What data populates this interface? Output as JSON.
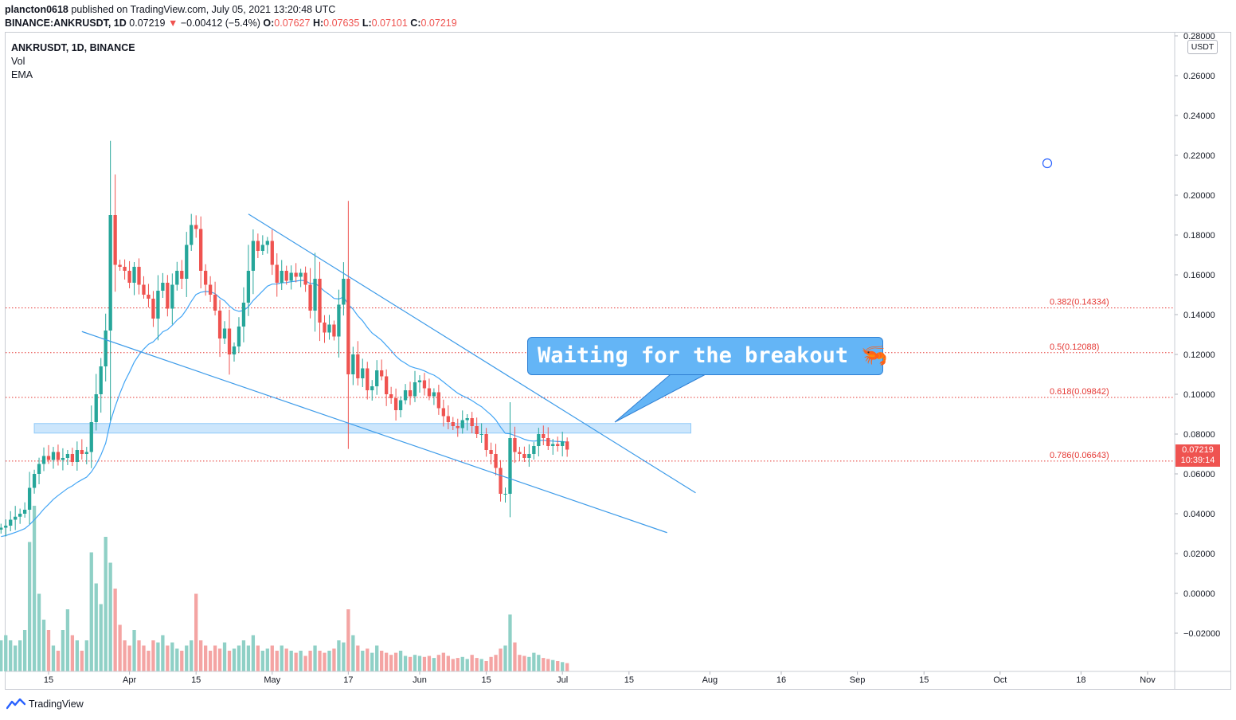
{
  "header": {
    "author": "plancton0618",
    "published_text": "published on TradingView.com, July 05, 2021 13:20:48 UTC",
    "symbol_line": "BINANCE:ANKRUSDT, 1D",
    "last_price": "0.07219",
    "change": "−0.00412 (−5.4%)",
    "o_label": "O:",
    "o_value": "0.07627",
    "h_label": "H:",
    "h_value": "0.07635",
    "l_label": "L:",
    "l_value": "0.07101",
    "c_label": "C:",
    "c_value": "0.07219"
  },
  "legend": {
    "title": "ANKRUSDT, 1D, BINANCE",
    "vol": "Vol",
    "ema": "EMA"
  },
  "price_axis": {
    "unit": "USDT",
    "current_price": "0.07219",
    "countdown": "10:39:14"
  },
  "annotation": {
    "text": "Waiting for the breakout",
    "emoji": "🦐"
  },
  "footer": {
    "brand": "TradingView"
  },
  "colors": {
    "up": "#26a69a",
    "down": "#ef5350",
    "vol_up": "#8fd0c6",
    "vol_down": "#f4a4a3",
    "ema": "#42a5f5",
    "trend": "#3d9be9",
    "fib": "#e53935",
    "zone": "#bbdefb"
  },
  "chart_data": {
    "type": "candlestick",
    "timeframe": "1D",
    "y_axis": {
      "ticks": [
        "0.28000",
        "0.26000",
        "0.24000",
        "0.22000",
        "0.20000",
        "0.18000",
        "0.16000",
        "0.14000",
        "0.12000",
        "0.10000",
        "0.08000",
        "0.06000",
        "0.04000",
        "0.02000",
        "0.00000",
        "−0.02000"
      ],
      "min": -0.035,
      "max": 0.28
    },
    "x_axis": {
      "start_date": "2021-03-05",
      "ticks": [
        {
          "label": "15",
          "date": "2021-03-15"
        },
        {
          "label": "Apr",
          "date": "2021-04-01"
        },
        {
          "label": "15",
          "date": "2021-04-15"
        },
        {
          "label": "May",
          "date": "2021-05-01"
        },
        {
          "label": "17",
          "date": "2021-05-17"
        },
        {
          "label": "Jun",
          "date": "2021-06-01"
        },
        {
          "label": "15",
          "date": "2021-06-15"
        },
        {
          "label": "Jul",
          "date": "2021-07-01"
        },
        {
          "label": "15",
          "date": "2021-07-15"
        },
        {
          "label": "Aug",
          "date": "2021-08-01"
        },
        {
          "label": "16",
          "date": "2021-08-16"
        },
        {
          "label": "Sep",
          "date": "2021-09-01"
        },
        {
          "label": "15",
          "date": "2021-09-15"
        },
        {
          "label": "Oct",
          "date": "2021-10-01"
        },
        {
          "label": "18",
          "date": "2021-10-18"
        },
        {
          "label": "Nov",
          "date": "2021-11-01"
        }
      ]
    },
    "fib_levels": [
      {
        "label": "0.382(0.14334)",
        "value": 0.14334
      },
      {
        "label": "0.5(0.12088)",
        "value": 0.12088
      },
      {
        "label": "0.618(0.09842)",
        "value": 0.09842
      },
      {
        "label": "0.786(0.06643)",
        "value": 0.06643
      }
    ],
    "zone": {
      "from_date": "2021-03-12",
      "to_date": "2021-07-28",
      "low": 0.0805,
      "high": 0.0853
    },
    "trend_lines": [
      {
        "name": "upper",
        "start": {
          "date": "2021-04-26",
          "value": 0.1905
        },
        "end": {
          "date": "2021-07-29",
          "value": 0.0505
        }
      },
      {
        "name": "lower",
        "start": {
          "date": "2021-03-22",
          "value": 0.1315
        },
        "end": {
          "date": "2021-07-23",
          "value": 0.0305
        }
      }
    ],
    "closes": [
      0.033,
      0.034,
      0.037,
      0.0385,
      0.04,
      0.042,
      0.053,
      0.06,
      0.065,
      0.069,
      0.067,
      0.071,
      0.067,
      0.068,
      0.07,
      0.066,
      0.072,
      0.07,
      0.071,
      0.086,
      0.1,
      0.114,
      0.132,
      0.19,
      0.165,
      0.164,
      0.162,
      0.156,
      0.164,
      0.155,
      0.15,
      0.148,
      0.138,
      0.152,
      0.156,
      0.143,
      0.155,
      0.162,
      0.158,
      0.175,
      0.185,
      0.183,
      0.162,
      0.155,
      0.15,
      0.142,
      0.128,
      0.133,
      0.12,
      0.124,
      0.134,
      0.146,
      0.162,
      0.177,
      0.172,
      0.175,
      0.177,
      0.165,
      0.156,
      0.162,
      0.157,
      0.161,
      0.159,
      0.161,
      0.155,
      0.142,
      0.158,
      0.136,
      0.131,
      0.135,
      0.129,
      0.145,
      0.158,
      0.11,
      0.12,
      0.108,
      0.113,
      0.102,
      0.104,
      0.112,
      0.109,
      0.1,
      0.098,
      0.092,
      0.097,
      0.102,
      0.099,
      0.106,
      0.107,
      0.103,
      0.099,
      0.101,
      0.093,
      0.089,
      0.086,
      0.084,
      0.083,
      0.087,
      0.088,
      0.084,
      0.08,
      0.08,
      0.072,
      0.07,
      0.063,
      0.05,
      0.05,
      0.078,
      0.071,
      0.07,
      0.068,
      0.07,
      0.074,
      0.08,
      0.078,
      0.074,
      0.075,
      0.074,
      0.0763,
      0.0722
    ],
    "volumes": [
      3.0,
      3.5,
      3.0,
      2.5,
      3.0,
      4.0,
      12.5,
      16.0,
      7.5,
      5.0,
      4.0,
      2.5,
      2.0,
      4.0,
      6.0,
      3.5,
      3.0,
      2.0,
      3.0,
      11.5,
      8.5,
      6.5,
      13.0,
      10.5,
      8.0,
      4.5,
      3.0,
      2.5,
      4.0,
      3.0,
      2.5,
      2.0,
      3.0,
      2.8,
      3.5,
      2.5,
      2.8,
      2.2,
      2.0,
      2.5,
      3.0,
      7.5,
      3.0,
      2.5,
      2.0,
      2.5,
      2.2,
      2.8,
      2.0,
      2.2,
      2.5,
      3.0,
      2.5,
      3.5,
      2.5,
      2.0,
      2.2,
      2.5,
      2.0,
      2.5,
      2.2,
      2.0,
      1.8,
      2.0,
      1.5,
      2.0,
      2.5,
      2.0,
      1.8,
      2.0,
      2.2,
      3.0,
      2.8,
      6.0,
      3.5,
      2.5,
      2.0,
      2.2,
      1.8,
      2.5,
      2.0,
      1.8,
      1.6,
      1.8,
      2.0,
      1.5,
      1.4,
      1.6,
      1.5,
      1.4,
      1.5,
      1.3,
      1.6,
      1.8,
      1.5,
      1.2,
      1.3,
      1.4,
      1.2,
      1.6,
      1.3,
      1.2,
      1.0,
      1.4,
      1.6,
      2.2,
      2.5,
      5.5,
      2.8,
      1.6,
      1.5,
      1.4,
      1.8,
      1.6,
      1.3,
      1.2,
      1.1,
      1.0,
      0.9,
      0.8
    ]
  }
}
